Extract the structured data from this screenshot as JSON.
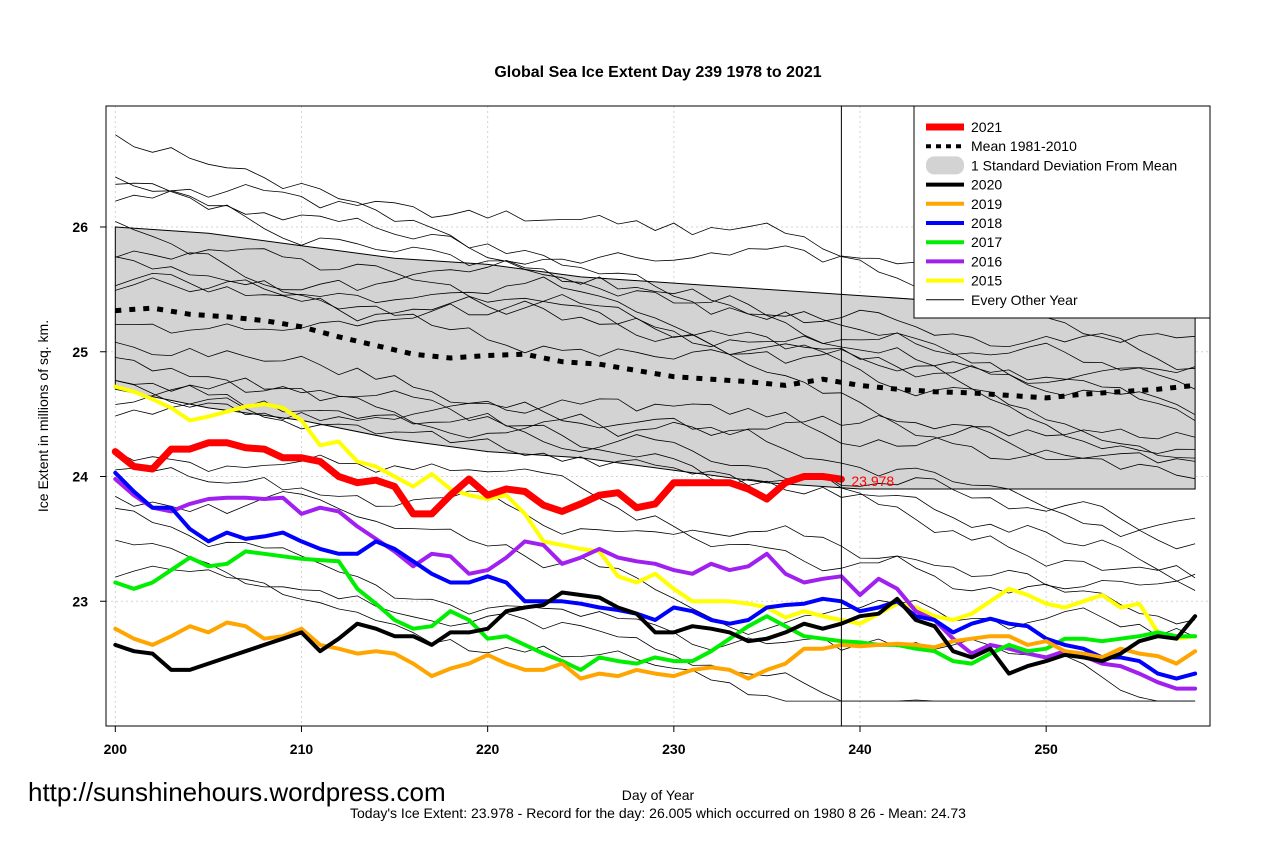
{
  "chart_data": {
    "type": "line",
    "title": "Global Sea Ice Extent Day 239 1978 to 2021",
    "xlabel": "Day of Year",
    "ylabel": "Ice Extent in millions of sq. km.",
    "xlim": [
      199.5,
      258.8
    ],
    "ylim": [
      22.0,
      26.97
    ],
    "x_ticks": [
      "200",
      "210",
      "220",
      "230",
      "240",
      "250"
    ],
    "y_ticks": [
      "23",
      "24",
      "25",
      "26"
    ],
    "grid": true,
    "marker_day": 239,
    "annotation": {
      "text": "23.978",
      "x": 239,
      "y": 23.978,
      "color": "#ff0000"
    },
    "footer": "Today's Ice Extent: 23.978  - Record for the day: 26.005 which occurred on 1980 8 26  - Mean: 24.73",
    "watermark": "http://sunshinehours.wordpress.com",
    "legend": {
      "position": "top-right",
      "entries": [
        {
          "label": "2021",
          "color": "#ff0000",
          "style": "solid-thick"
        },
        {
          "label": "Mean 1981-2010",
          "color": "#000000",
          "style": "dotted-thick"
        },
        {
          "label": "1 Standard Deviation From Mean",
          "color": "#d3d3d3",
          "style": "band"
        },
        {
          "label": "2020",
          "color": "#000000",
          "style": "solid"
        },
        {
          "label": "2019",
          "color": "#ffa500",
          "style": "solid"
        },
        {
          "label": "2018",
          "color": "#0000ff",
          "style": "solid"
        },
        {
          "label": "2017",
          "color": "#00ee00",
          "style": "solid"
        },
        {
          "label": "2016",
          "color": "#a020f0",
          "style": "solid"
        },
        {
          "label": "2015",
          "color": "#ffff00",
          "style": "solid"
        },
        {
          "label": "Every Other Year",
          "color": "#000000",
          "style": "thin"
        }
      ]
    },
    "sd_band": {
      "x": [
        200,
        205,
        210,
        215,
        220,
        225,
        230,
        235,
        240,
        245,
        250,
        255,
        258
      ],
      "upper": [
        26.0,
        25.95,
        25.85,
        25.75,
        25.7,
        25.6,
        25.55,
        25.5,
        25.45,
        25.4,
        25.4,
        25.45,
        25.55
      ],
      "lower": [
        24.7,
        24.55,
        24.45,
        24.3,
        24.2,
        24.15,
        24.05,
        23.95,
        23.9,
        23.9,
        23.9,
        23.9,
        23.9
      ]
    },
    "mean": {
      "x": [
        200,
        202,
        204,
        206,
        208,
        210,
        212,
        214,
        216,
        218,
        220,
        222,
        224,
        226,
        228,
        230,
        232,
        234,
        236,
        238,
        240,
        242,
        244,
        246,
        248,
        250,
        252,
        254,
        256,
        258
      ],
      "y": [
        25.33,
        25.35,
        25.3,
        25.28,
        25.25,
        25.2,
        25.12,
        25.05,
        24.98,
        24.95,
        24.97,
        24.98,
        24.92,
        24.9,
        24.85,
        24.8,
        24.78,
        24.76,
        24.73,
        24.78,
        24.73,
        24.7,
        24.68,
        24.67,
        24.65,
        24.63,
        24.66,
        24.68,
        24.7,
        24.73
      ]
    },
    "series": [
      {
        "name": "2021",
        "color": "#ff0000",
        "width": 7,
        "x": [
          200,
          201,
          202,
          203,
          204,
          205,
          206,
          207,
          208,
          209,
          210,
          211,
          212,
          213,
          214,
          215,
          216,
          217,
          218,
          219,
          220,
          221,
          222,
          223,
          224,
          225,
          226,
          227,
          228,
          229,
          230,
          231,
          232,
          233,
          234,
          235,
          236,
          237,
          238,
          239
        ],
        "y": [
          24.2,
          24.08,
          24.06,
          24.22,
          24.22,
          24.27,
          24.27,
          24.23,
          24.22,
          24.15,
          24.15,
          24.12,
          24.0,
          23.95,
          23.97,
          23.92,
          23.7,
          23.7,
          23.85,
          23.98,
          23.85,
          23.9,
          23.88,
          23.77,
          23.72,
          23.78,
          23.85,
          23.87,
          23.75,
          23.78,
          23.95,
          23.95,
          23.95,
          23.95,
          23.9,
          23.82,
          23.95,
          24.0,
          24.0,
          23.978
        ]
      },
      {
        "name": "2020",
        "color": "#000000",
        "width": 4,
        "x": [
          200,
          201,
          202,
          203,
          204,
          205,
          206,
          207,
          208,
          209,
          210,
          211,
          212,
          213,
          214,
          215,
          216,
          217,
          218,
          219,
          220,
          221,
          222,
          223,
          224,
          225,
          226,
          227,
          228,
          229,
          230,
          231,
          232,
          233,
          234,
          235,
          236,
          237,
          238,
          239,
          240,
          241,
          242,
          243,
          244,
          245,
          246,
          247,
          248,
          249,
          250,
          251,
          252,
          253,
          254,
          255,
          256,
          257,
          258
        ],
        "y": [
          22.65,
          22.6,
          22.58,
          22.45,
          22.45,
          22.5,
          22.55,
          22.6,
          22.65,
          22.7,
          22.75,
          22.6,
          22.7,
          22.82,
          22.78,
          22.72,
          22.72,
          22.65,
          22.75,
          22.75,
          22.78,
          22.92,
          22.95,
          22.97,
          23.07,
          23.05,
          23.03,
          22.95,
          22.9,
          22.75,
          22.75,
          22.8,
          22.78,
          22.75,
          22.68,
          22.7,
          22.75,
          22.82,
          22.78,
          22.82,
          22.88,
          22.9,
          23.02,
          22.85,
          22.8,
          22.6,
          22.55,
          22.62,
          22.42,
          22.48,
          22.52,
          22.57,
          22.55,
          22.52,
          22.58,
          22.68,
          22.72,
          22.7,
          22.88
        ]
      },
      {
        "name": "2019",
        "color": "#ffa500",
        "width": 4,
        "x": [
          200,
          201,
          202,
          203,
          204,
          205,
          206,
          207,
          208,
          209,
          210,
          211,
          212,
          213,
          214,
          215,
          216,
          217,
          218,
          219,
          220,
          221,
          222,
          223,
          224,
          225,
          226,
          227,
          228,
          229,
          230,
          231,
          232,
          233,
          234,
          235,
          236,
          237,
          238,
          239,
          240,
          241,
          242,
          243,
          244,
          245,
          246,
          247,
          248,
          249,
          250,
          251,
          252,
          253,
          254,
          255,
          256,
          257,
          258
        ],
        "y": [
          22.78,
          22.7,
          22.65,
          22.72,
          22.8,
          22.75,
          22.83,
          22.8,
          22.7,
          22.72,
          22.78,
          22.65,
          22.62,
          22.58,
          22.6,
          22.58,
          22.5,
          22.4,
          22.46,
          22.5,
          22.57,
          22.5,
          22.45,
          22.45,
          22.5,
          22.38,
          22.42,
          22.4,
          22.45,
          22.42,
          22.4,
          22.45,
          22.47,
          22.45,
          22.38,
          22.45,
          22.5,
          22.62,
          22.62,
          22.65,
          22.64,
          22.65,
          22.66,
          22.65,
          22.63,
          22.68,
          22.7,
          22.72,
          22.72,
          22.65,
          22.68,
          22.6,
          22.58,
          22.55,
          22.62,
          22.58,
          22.56,
          22.5,
          22.6
        ]
      },
      {
        "name": "2018",
        "color": "#0000ff",
        "width": 4,
        "x": [
          200,
          201,
          202,
          203,
          204,
          205,
          206,
          207,
          208,
          209,
          210,
          211,
          212,
          213,
          214,
          215,
          216,
          217,
          218,
          219,
          220,
          221,
          222,
          223,
          224,
          225,
          226,
          227,
          228,
          229,
          230,
          231,
          232,
          233,
          234,
          235,
          236,
          237,
          238,
          239,
          240,
          241,
          242,
          243,
          244,
          245,
          246,
          247,
          248,
          249,
          250,
          251,
          252,
          253,
          254,
          255,
          256,
          257,
          258
        ],
        "y": [
          24.03,
          23.88,
          23.75,
          23.75,
          23.58,
          23.48,
          23.55,
          23.5,
          23.52,
          23.55,
          23.48,
          23.42,
          23.38,
          23.38,
          23.48,
          23.42,
          23.32,
          23.22,
          23.15,
          23.15,
          23.2,
          23.15,
          23.0,
          23.0,
          23.0,
          22.98,
          22.95,
          22.93,
          22.9,
          22.85,
          22.95,
          22.92,
          22.85,
          22.82,
          22.85,
          22.95,
          22.97,
          22.98,
          23.02,
          23.0,
          22.92,
          22.95,
          23.0,
          22.88,
          22.85,
          22.75,
          22.82,
          22.86,
          22.82,
          22.8,
          22.7,
          22.65,
          22.62,
          22.55,
          22.55,
          22.52,
          22.42,
          22.38,
          22.42
        ]
      },
      {
        "name": "2017",
        "color": "#00ee00",
        "width": 4,
        "x": [
          200,
          201,
          202,
          203,
          204,
          205,
          206,
          207,
          208,
          209,
          210,
          211,
          212,
          213,
          214,
          215,
          216,
          217,
          218,
          219,
          220,
          221,
          222,
          223,
          224,
          225,
          226,
          227,
          228,
          229,
          230,
          231,
          232,
          233,
          234,
          235,
          236,
          237,
          238,
          239,
          240,
          241,
          242,
          243,
          244,
          245,
          246,
          247,
          248,
          249,
          250,
          251,
          252,
          253,
          254,
          255,
          256,
          257,
          258
        ],
        "y": [
          23.15,
          23.1,
          23.15,
          23.25,
          23.35,
          23.28,
          23.3,
          23.4,
          23.38,
          23.36,
          23.34,
          23.33,
          23.32,
          23.1,
          22.98,
          22.85,
          22.78,
          22.8,
          22.92,
          22.85,
          22.7,
          22.72,
          22.65,
          22.58,
          22.52,
          22.45,
          22.55,
          22.52,
          22.5,
          22.55,
          22.52,
          22.52,
          22.6,
          22.7,
          22.8,
          22.88,
          22.8,
          22.72,
          22.7,
          22.68,
          22.67,
          22.65,
          22.65,
          22.62,
          22.6,
          22.52,
          22.5,
          22.58,
          22.65,
          22.6,
          22.62,
          22.7,
          22.7,
          22.68,
          22.7,
          22.72,
          22.75,
          22.72,
          22.72
        ]
      },
      {
        "name": "2016",
        "color": "#a020f0",
        "width": 4,
        "x": [
          200,
          201,
          202,
          203,
          204,
          205,
          206,
          207,
          208,
          209,
          210,
          211,
          212,
          213,
          214,
          215,
          216,
          217,
          218,
          219,
          220,
          221,
          222,
          223,
          224,
          225,
          226,
          227,
          228,
          229,
          230,
          231,
          232,
          233,
          234,
          235,
          236,
          237,
          238,
          239,
          240,
          241,
          242,
          243,
          244,
          245,
          246,
          247,
          248,
          249,
          250,
          251,
          252,
          253,
          254,
          255,
          256,
          257,
          258
        ],
        "y": [
          23.98,
          23.85,
          23.75,
          23.72,
          23.78,
          23.82,
          23.83,
          23.83,
          23.82,
          23.83,
          23.7,
          23.75,
          23.72,
          23.6,
          23.5,
          23.4,
          23.28,
          23.38,
          23.36,
          23.22,
          23.25,
          23.35,
          23.48,
          23.45,
          23.3,
          23.35,
          23.42,
          23.35,
          23.32,
          23.3,
          23.25,
          23.22,
          23.3,
          23.25,
          23.28,
          23.38,
          23.22,
          23.15,
          23.18,
          23.2,
          23.05,
          23.18,
          23.1,
          22.92,
          22.85,
          22.7,
          22.58,
          22.65,
          22.62,
          22.58,
          22.55,
          22.6,
          22.56,
          22.5,
          22.48,
          22.42,
          22.35,
          22.3,
          22.3
        ]
      },
      {
        "name": "2015",
        "color": "#ffff00",
        "width": 4,
        "x": [
          200,
          201,
          202,
          203,
          204,
          205,
          206,
          207,
          208,
          209,
          210,
          211,
          212,
          213,
          214,
          215,
          216,
          217,
          218,
          219,
          220,
          221,
          222,
          223,
          224,
          225,
          226,
          227,
          228,
          229,
          230,
          231,
          232,
          233,
          234,
          235,
          236,
          237,
          238,
          239,
          240,
          241,
          242,
          243,
          244,
          245,
          246,
          247,
          248,
          249,
          250,
          251,
          252,
          253,
          254,
          255,
          256,
          257,
          258
        ],
        "y": [
          24.72,
          24.68,
          24.62,
          24.55,
          24.45,
          24.48,
          24.52,
          24.56,
          24.58,
          24.55,
          24.45,
          24.25,
          24.28,
          24.12,
          24.08,
          24.0,
          23.92,
          24.02,
          23.9,
          23.85,
          23.82,
          23.85,
          23.7,
          23.48,
          23.45,
          23.42,
          23.4,
          23.2,
          23.15,
          23.22,
          23.1,
          23.0,
          23.0,
          23.0,
          22.98,
          22.95,
          22.87,
          22.92,
          22.88,
          22.85,
          22.82,
          22.9,
          22.98,
          22.95,
          22.88,
          22.85,
          22.9,
          23.0,
          23.1,
          23.05,
          22.98,
          22.95,
          23.0,
          23.05,
          22.95,
          22.98,
          22.75,
          22.7,
          22.72
        ]
      }
    ]
  }
}
